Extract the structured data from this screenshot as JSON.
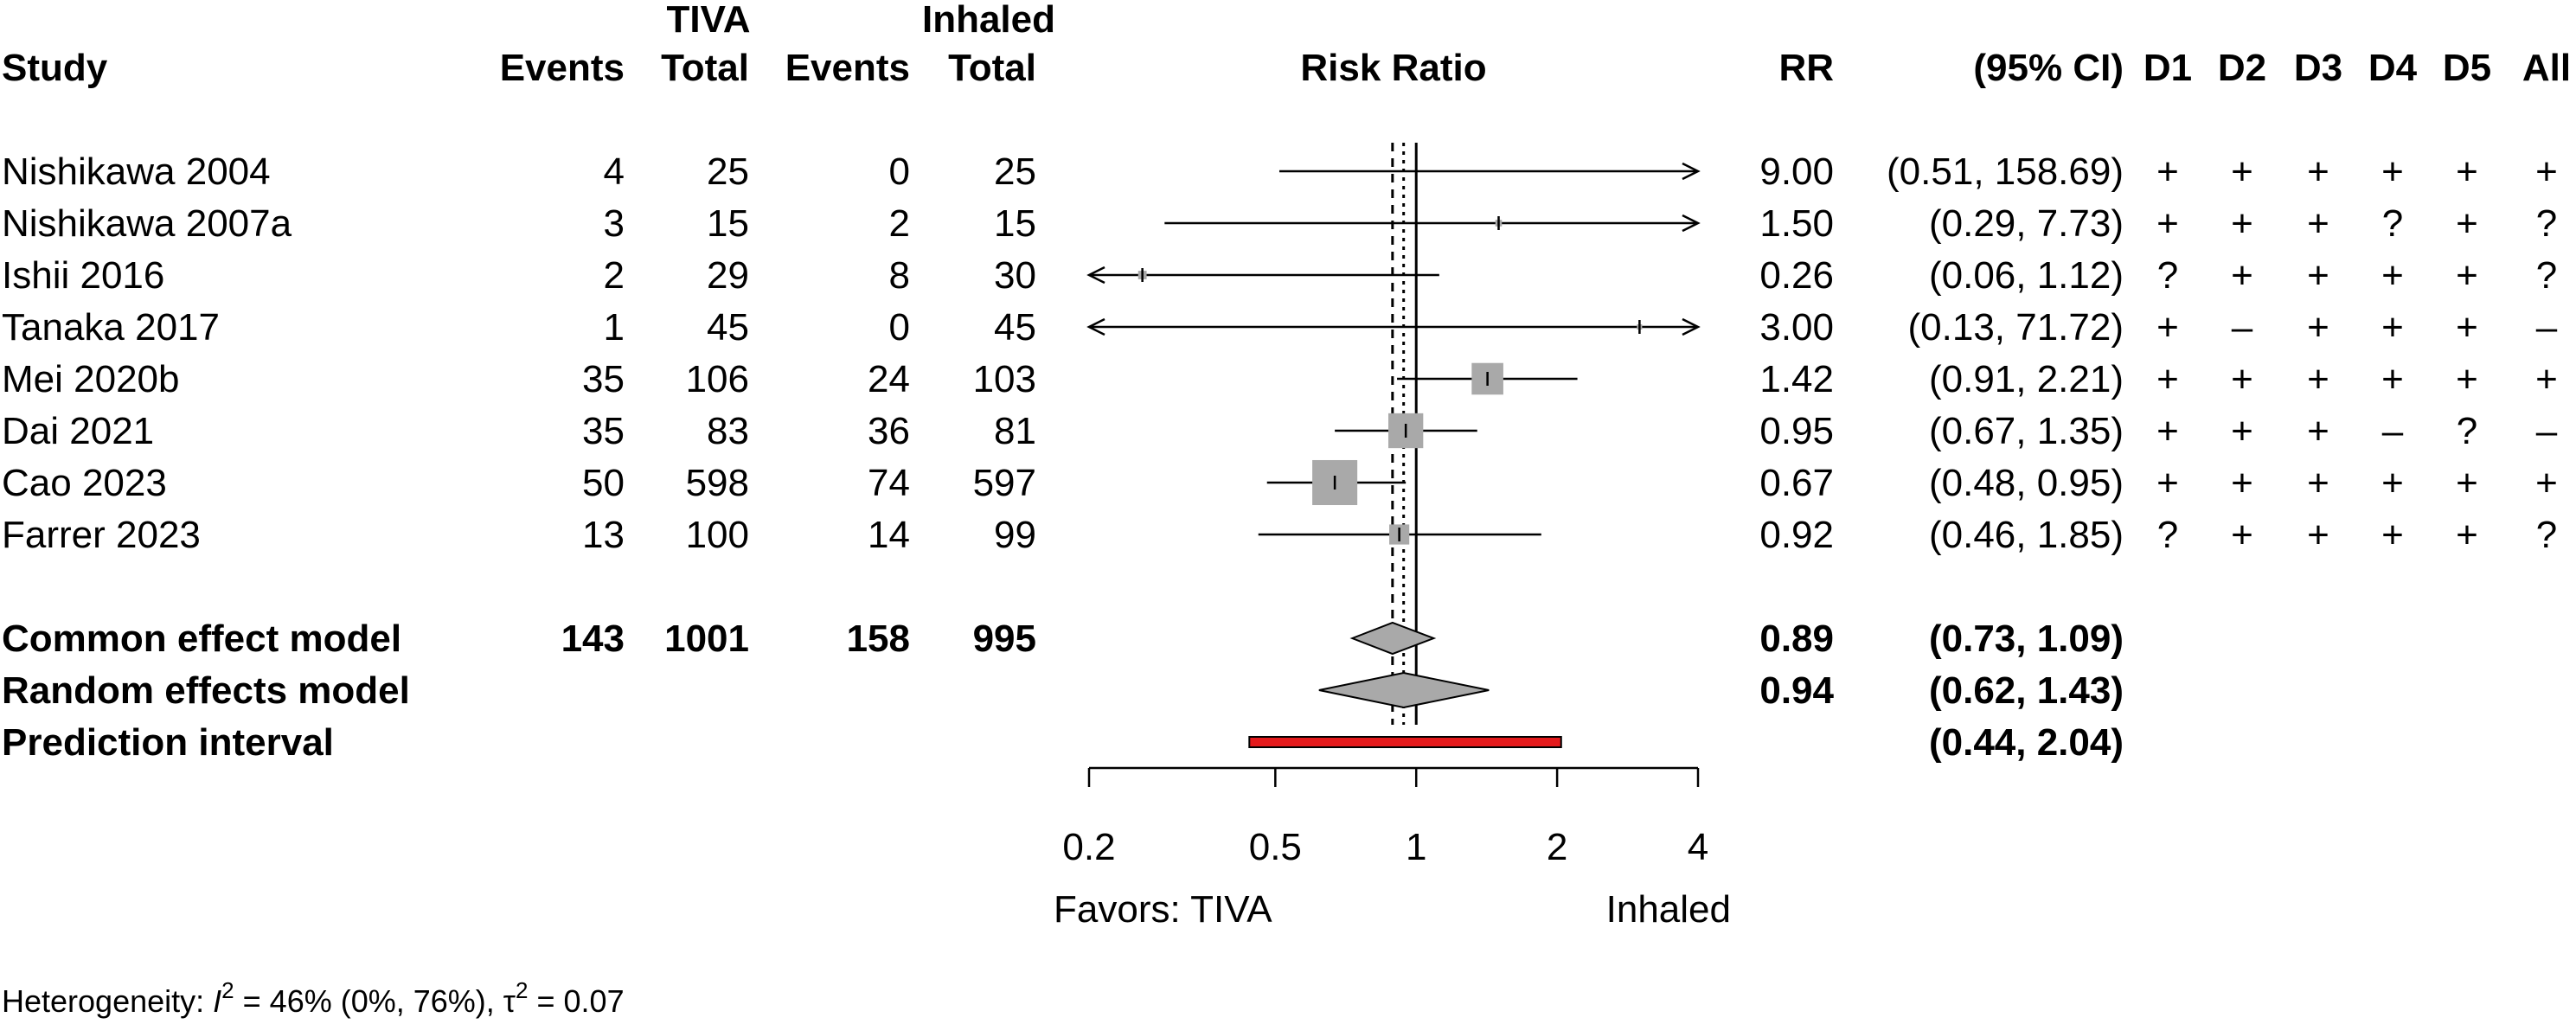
{
  "header": {
    "study": "Study",
    "group1": "TIVA",
    "group2": "Inhaled",
    "events": "Events",
    "total": "Total",
    "plot_title": "Risk Ratio",
    "rr": "RR",
    "ci": "(95% CI)",
    "domains": [
      "D1",
      "D2",
      "D3",
      "D4",
      "D5",
      "All"
    ]
  },
  "chart_data": {
    "type": "forest",
    "scale": "log",
    "xlim": [
      0.2,
      4
    ],
    "xticks": [
      0.2,
      0.5,
      1,
      2,
      4
    ],
    "xtick_labels": [
      "0.2",
      "0.5",
      "1",
      "2",
      "4"
    ],
    "null_value": 1,
    "xlabel_left": "Favors: TIVA",
    "xlabel_right": "Inhaled",
    "studies": [
      {
        "name": "Nishikawa 2004",
        "e1": "4",
        "n1": "25",
        "e2": "0",
        "n2": "25",
        "rr": 9.0,
        "lo": 0.51,
        "hi": 158.69,
        "rr_text": "9.00",
        "ci_text": "(0.51, 158.69)",
        "weight": 0.3,
        "rob": [
          "+",
          "+",
          "+",
          "+",
          "+",
          "+"
        ]
      },
      {
        "name": "Nishikawa 2007a",
        "e1": "3",
        "n1": "15",
        "e2": "2",
        "n2": "15",
        "rr": 1.5,
        "lo": 0.29,
        "hi": 7.73,
        "rr_text": "1.50",
        "ci_text": "(0.29, 7.73)",
        "weight": 0.9,
        "rob": [
          "+",
          "+",
          "+",
          "?",
          "+",
          "?"
        ]
      },
      {
        "name": "Ishii 2016",
        "e1": "2",
        "n1": "29",
        "e2": "8",
        "n2": "30",
        "rr": 0.26,
        "lo": 0.06,
        "hi": 1.12,
        "rr_text": "0.26",
        "ci_text": "(0.06, 1.12)",
        "weight": 1.5,
        "rob": [
          "?",
          "+",
          "+",
          "+",
          "+",
          "?"
        ]
      },
      {
        "name": "Tanaka 2017",
        "e1": "1",
        "n1": "45",
        "e2": "0",
        "n2": "45",
        "rr": 3.0,
        "lo": 0.13,
        "hi": 71.72,
        "rr_text": "3.00",
        "ci_text": "(0.13, 71.72)",
        "weight": 0.3,
        "rob": [
          "+",
          "–",
          "+",
          "+",
          "+",
          "–"
        ]
      },
      {
        "name": "Mei 2020b",
        "e1": "35",
        "n1": "106",
        "e2": "24",
        "n2": "103",
        "rr": 1.42,
        "lo": 0.91,
        "hi": 2.21,
        "rr_text": "1.42",
        "ci_text": "(0.91, 2.21)",
        "weight": 20.9,
        "rob": [
          "+",
          "+",
          "+",
          "+",
          "+",
          "+"
        ]
      },
      {
        "name": "Dai 2021",
        "e1": "35",
        "n1": "83",
        "e2": "36",
        "n2": "81",
        "rr": 0.95,
        "lo": 0.67,
        "hi": 1.35,
        "rr_text": "0.95",
        "ci_text": "(0.67, 1.35)",
        "weight": 25.4,
        "rob": [
          "+",
          "+",
          "+",
          "–",
          "?",
          "–"
        ]
      },
      {
        "name": "Cao 2023",
        "e1": "50",
        "n1": "598",
        "e2": "74",
        "n2": "597",
        "rr": 0.67,
        "lo": 0.48,
        "hi": 0.95,
        "rr_text": "0.67",
        "ci_text": "(0.48, 0.95)",
        "weight": 42.3,
        "rob": [
          "+",
          "+",
          "+",
          "+",
          "+",
          "+"
        ]
      },
      {
        "name": "Farrer 2023",
        "e1": "13",
        "n1": "100",
        "e2": "14",
        "n2": "99",
        "rr": 0.92,
        "lo": 0.46,
        "hi": 1.85,
        "rr_text": "0.92",
        "ci_text": "(0.46, 1.85)",
        "weight": 8.4,
        "rob": [
          "?",
          "+",
          "+",
          "+",
          "+",
          "?"
        ]
      }
    ],
    "common": {
      "name": "Common effect model",
      "e1": "143",
      "n1": "1001",
      "e2": "158",
      "n2": "995",
      "rr": 0.89,
      "lo": 0.73,
      "hi": 1.09,
      "rr_text": "0.89",
      "ci_text": "(0.73, 1.09)"
    },
    "random": {
      "name": "Random effects model",
      "rr": 0.94,
      "lo": 0.62,
      "hi": 1.43,
      "rr_text": "0.94",
      "ci_text": "(0.62, 1.43)"
    },
    "prediction": {
      "name": "Prediction interval",
      "lo": 0.44,
      "hi": 2.04,
      "ci_text": "(0.44, 2.04)"
    },
    "heterogeneity": {
      "prefix": "Heterogeneity: ",
      "i2_symbol": "I",
      "i2_text": " = 46% (0%, 76%), ",
      "tau_symbol": "τ",
      "tau_text": " = 0.07",
      "superscript": "2"
    },
    "colors": {
      "square": "#a9a9a9",
      "diamond": "#a9a9a9",
      "prediction": "#e41a1c",
      "line": "#000000"
    }
  }
}
